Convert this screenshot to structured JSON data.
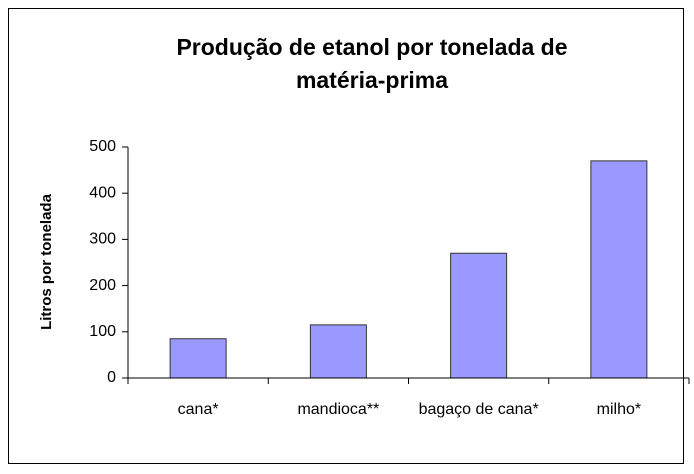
{
  "chart_data": {
    "type": "bar",
    "title": "Produção de etanol por tonelada de matéria-prima",
    "y_label": "Litros por tonelada",
    "categories": [
      "cana*",
      "mandioca**",
      "bagaço de cana*",
      "milho*"
    ],
    "values": [
      85,
      115,
      270,
      470
    ],
    "color": "#9999ff",
    "ylim": [
      0,
      500
    ],
    "yticks": [
      0,
      100,
      200,
      300,
      400,
      500
    ],
    "grid": false
  }
}
